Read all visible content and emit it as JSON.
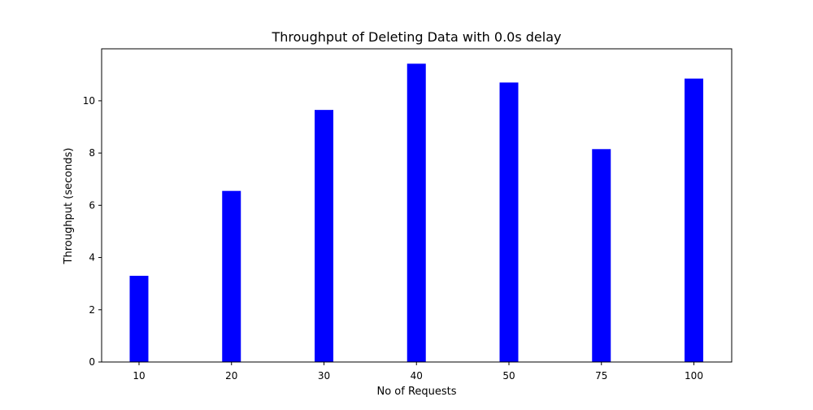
{
  "chart_data": {
    "type": "bar",
    "title": "Throughput of Deleting Data with 0.0s delay",
    "xlabel": "No of Requests",
    "ylabel": "Throughput (seconds)",
    "categories": [
      "10",
      "20",
      "30",
      "40",
      "50",
      "75",
      "100"
    ],
    "values": [
      3.3,
      6.55,
      9.65,
      11.42,
      10.7,
      8.15,
      10.85
    ],
    "ylim": [
      0,
      11.99
    ],
    "yticks": [
      "0",
      "2",
      "4",
      "6",
      "8",
      "10"
    ],
    "grid": false,
    "bar_color": "#0000ff"
  }
}
